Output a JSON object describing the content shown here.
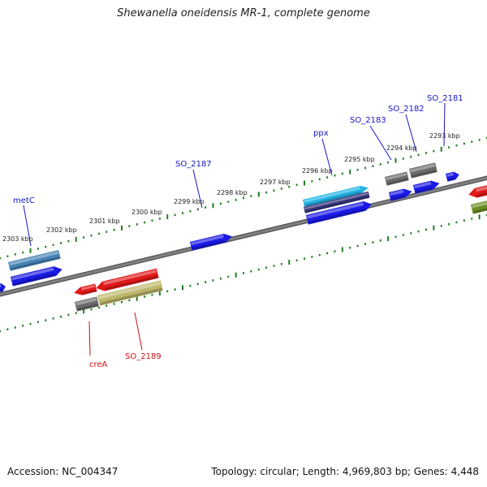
{
  "title": "Shewanella oneidensis MR-1, complete genome",
  "footer": {
    "accession": "Accession: NC_004347",
    "summary": "Topology: circular; Length: 4,969,803 bp; Genes: 4,448"
  },
  "colors": {
    "backbone": "#808080",
    "tick": "#1e7d1e",
    "label_forward": "#1414c8",
    "label_reverse": "#d01010"
  },
  "scale_labels": [
    "2303 kbp",
    "2302 kbp",
    "2301 kbp",
    "2300 kbp",
    "2299 kbp",
    "2298 kbp",
    "2297 kbp",
    "2296 kbp",
    "2295 kbp",
    "2294 kbp",
    "2293 kbp"
  ],
  "gene_labels_forward": [
    "metC",
    "SO_2187",
    "ppx",
    "SO_2183",
    "SO_2182",
    "SO_2181"
  ],
  "gene_labels_reverse": [
    "creA",
    "SO_2189"
  ],
  "feature_colors": {
    "gene": "#1a1ae6",
    "cds_cyan": "#22b4e6",
    "cds_steel": "#4682b4",
    "cds_navy": "#34347a",
    "pseudo_gray": "#6a6a6a",
    "reverse_red": "#e01818",
    "reverse_khaki": "#bdb76b",
    "reverse_olive": "#6b8e23"
  }
}
